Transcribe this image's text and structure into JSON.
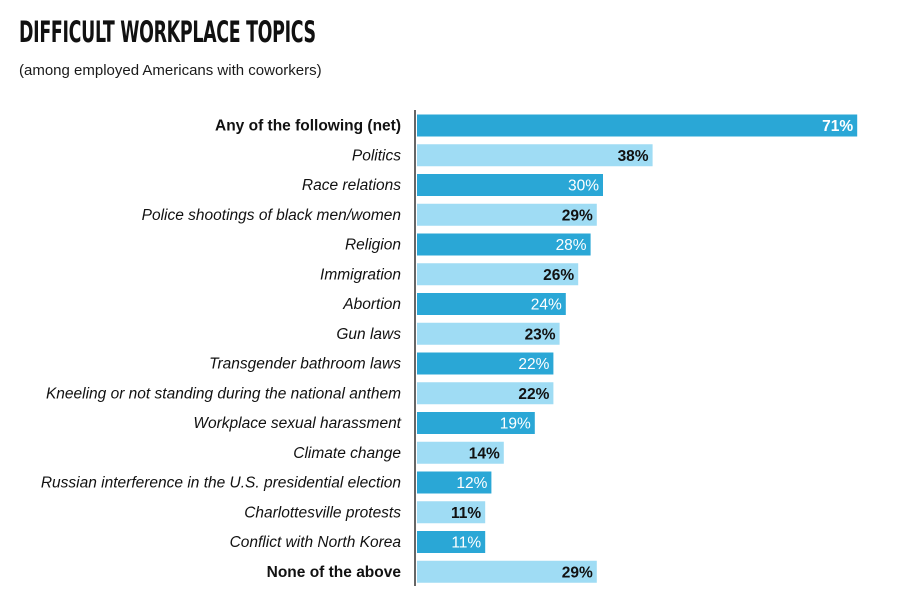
{
  "chart_data": {
    "type": "bar",
    "orientation": "horizontal",
    "title": "DIFFICULT WORKPLACE TOPICS",
    "subtitle": "(among employed Americans with coworkers)",
    "categories": [
      "Any of the following (net)",
      "Politics",
      "Race relations",
      "Police shootings of black men/women",
      "Religion",
      "Immigration",
      "Abortion",
      "Gun laws",
      "Transgender bathroom laws",
      "Kneeling or not standing during the national anthem",
      "Workplace sexual harassment",
      "Climate change",
      "Russian interference in the U.S. presidential election",
      "Charlottesville protests",
      "Conflict with North Korea",
      "None of the above"
    ],
    "values": [
      71,
      38,
      30,
      29,
      28,
      26,
      24,
      23,
      22,
      22,
      19,
      14,
      12,
      11,
      11,
      29
    ],
    "value_labels": [
      "71%",
      "38%",
      "30%",
      "29%",
      "28%",
      "26%",
      "24%",
      "23%",
      "22%",
      "22%",
      "19%",
      "14%",
      "12%",
      "11%",
      "11%",
      "29%"
    ],
    "bold_categories": [
      "Any of the following (net)",
      "None of the above"
    ],
    "xlim": [
      0,
      100
    ],
    "grid": false,
    "legend": "none",
    "colors": {
      "dark": "#2aa7d6",
      "light": "#9fdcf4",
      "axis": "#333333",
      "label_on_dark": "#ffffff",
      "label_on_light": "#111111"
    },
    "color_pattern": [
      "dark",
      "light",
      "dark",
      "light",
      "dark",
      "light",
      "dark",
      "light",
      "dark",
      "light",
      "dark",
      "light",
      "dark",
      "light",
      "dark",
      "light"
    ]
  }
}
